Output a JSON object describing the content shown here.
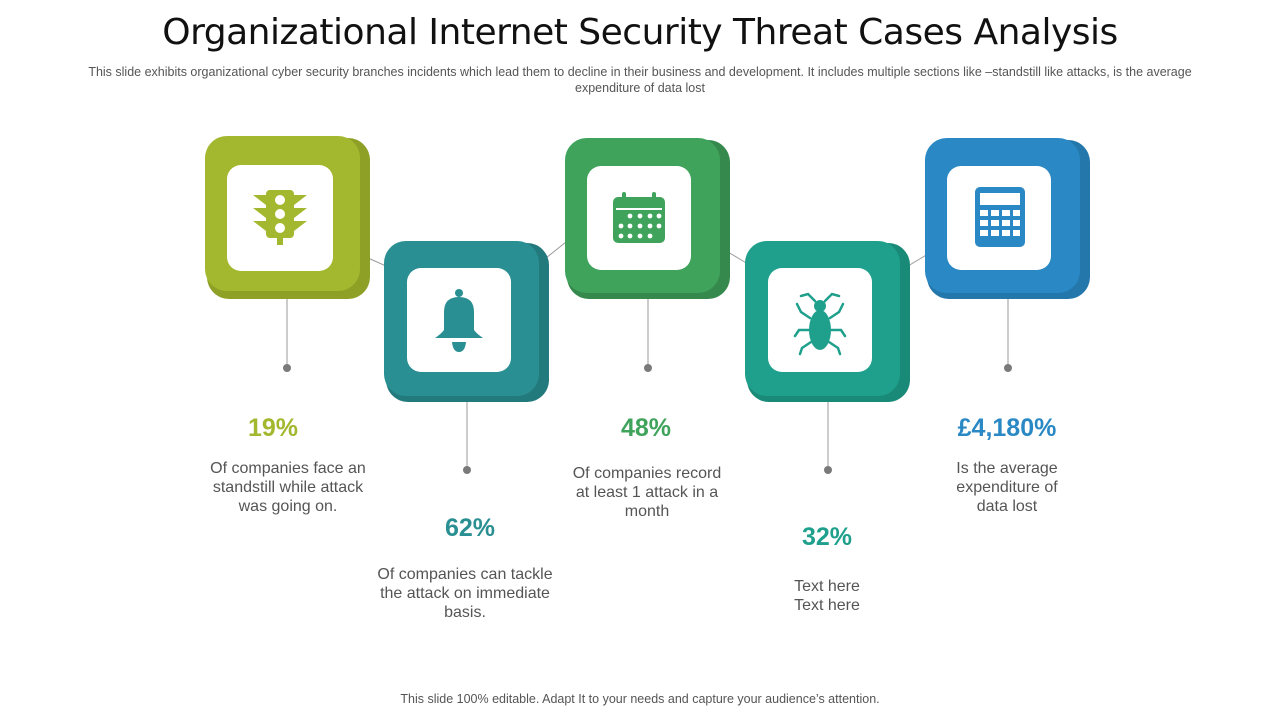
{
  "title": "Organizational Internet Security Threat Cases Analysis",
  "subtitle": "This slide exhibits organizational  cyber security branches incidents which lead them to decline in their business and development.  It includes multiple sections like –standstill like attacks, is the average  expenditure  of data lost",
  "footer": "This slide 100% editable.  Adapt  It to your needs and capture your audience’s attention.",
  "cards": [
    {
      "icon": "traffic-light-icon",
      "color": "#a3b82e",
      "value": "19%",
      "description": "Of companies face an standstill while attack was going on."
    },
    {
      "icon": "bell-icon",
      "color": "#2a8f92",
      "value": "62%",
      "description": "Of companies can tackle the attack on immediate basis."
    },
    {
      "icon": "calendar-icon",
      "color": "#3fa35c",
      "value": "48%",
      "description": "Of companies record at least 1 attack in a month"
    },
    {
      "icon": "bug-icon",
      "color": "#1fa08c",
      "value": "32%",
      "description": "Text here Text here"
    },
    {
      "icon": "calculator-icon",
      "color": "#2a89c4",
      "value": "£4,180%",
      "description": "Is the average expenditure of data lost"
    }
  ]
}
